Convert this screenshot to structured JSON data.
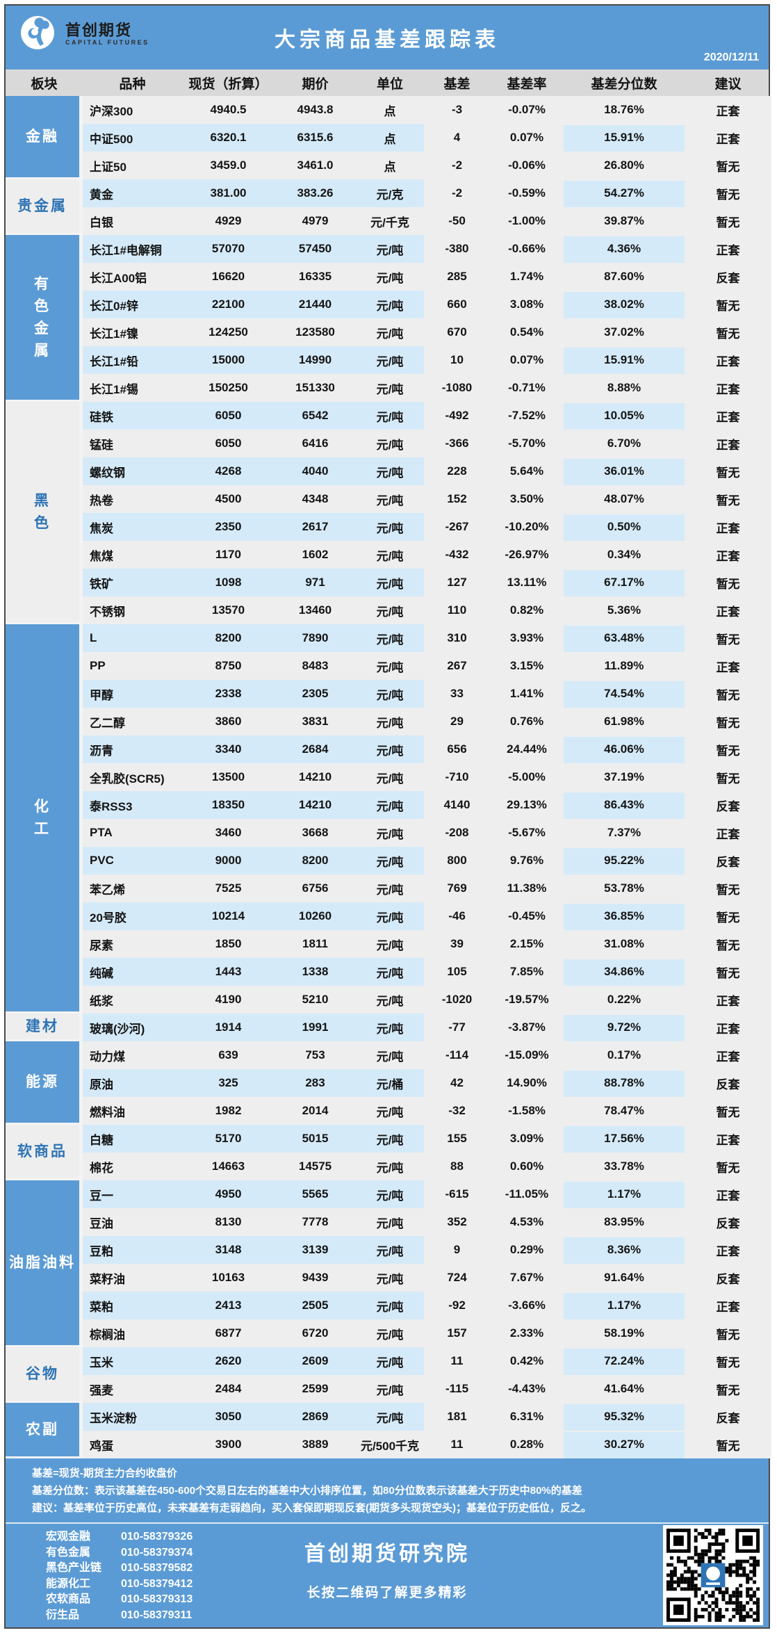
{
  "meta": {
    "logo_title": "首创期货",
    "logo_subtitle": "CAPITAL FUTURES",
    "title": "大宗商品基差跟踪表",
    "date": "2020/12/11"
  },
  "colors": {
    "primary_blue": "#5b9bd5",
    "stripe_blue": "#d5eaf8",
    "row_gray": "#eeeeee",
    "header_gray": "#d9d9d9",
    "sector_text_blue": "#2e74b5"
  },
  "columns": [
    "板块",
    "品种",
    "现货（折算）",
    "期价",
    "单位",
    "基差",
    "基差率",
    "基差分位数",
    "建议"
  ],
  "row_fields": [
    "variety",
    "spot",
    "futures",
    "unit",
    "basis",
    "basis_rate",
    "percentile",
    "advice",
    "striped",
    "percentile_highlight"
  ],
  "sectors": [
    {
      "name": "金融",
      "blue": true,
      "vertical": false,
      "rows": [
        [
          "沪深300",
          "4940.5",
          "4943.8",
          "点",
          "-3",
          "-0.07%",
          "18.76%",
          "正套",
          0,
          0
        ],
        [
          "中证500",
          "6320.1",
          "6315.6",
          "点",
          "4",
          "0.07%",
          "15.91%",
          "正套",
          1,
          1
        ],
        [
          "上证50",
          "3459.0",
          "3461.0",
          "点",
          "-2",
          "-0.06%",
          "26.80%",
          "暂无",
          0,
          0
        ]
      ]
    },
    {
      "name": "贵金属",
      "blue": false,
      "vertical": false,
      "rows": [
        [
          "黄金",
          "381.00",
          "383.26",
          "元/克",
          "-2",
          "-0.59%",
          "54.27%",
          "暂无",
          1,
          1
        ],
        [
          "白银",
          "4929",
          "4979",
          "元/千克",
          "-50",
          "-1.00%",
          "39.87%",
          "暂无",
          0,
          0
        ]
      ]
    },
    {
      "name": "有色金属",
      "blue": true,
      "vertical": true,
      "rows": [
        [
          "长江1#电解铜",
          "57070",
          "57450",
          "元/吨",
          "-380",
          "-0.66%",
          "4.36%",
          "正套",
          1,
          1
        ],
        [
          "长江A00铝",
          "16620",
          "16335",
          "元/吨",
          "285",
          "1.74%",
          "87.60%",
          "反套",
          0,
          0
        ],
        [
          "长江0#锌",
          "22100",
          "21440",
          "元/吨",
          "660",
          "3.08%",
          "38.02%",
          "暂无",
          1,
          1
        ],
        [
          "长江1#镍",
          "124250",
          "123580",
          "元/吨",
          "670",
          "0.54%",
          "37.02%",
          "暂无",
          0,
          0
        ],
        [
          "长江1#铅",
          "15000",
          "14990",
          "元/吨",
          "10",
          "0.07%",
          "15.91%",
          "正套",
          1,
          1
        ],
        [
          "长江1#锡",
          "150250",
          "151330",
          "元/吨",
          "-1080",
          "-0.71%",
          "8.88%",
          "正套",
          0,
          0
        ]
      ]
    },
    {
      "name": "黑色",
      "blue": false,
      "vertical": true,
      "rows": [
        [
          "硅铁",
          "6050",
          "6542",
          "元/吨",
          "-492",
          "-7.52%",
          "10.05%",
          "正套",
          1,
          1
        ],
        [
          "锰硅",
          "6050",
          "6416",
          "元/吨",
          "-366",
          "-5.70%",
          "6.70%",
          "正套",
          0,
          0
        ],
        [
          "螺纹钢",
          "4268",
          "4040",
          "元/吨",
          "228",
          "5.64%",
          "36.01%",
          "暂无",
          1,
          1
        ],
        [
          "热卷",
          "4500",
          "4348",
          "元/吨",
          "152",
          "3.50%",
          "48.07%",
          "暂无",
          0,
          0
        ],
        [
          "焦炭",
          "2350",
          "2617",
          "元/吨",
          "-267",
          "-10.20%",
          "0.50%",
          "正套",
          1,
          1
        ],
        [
          "焦煤",
          "1170",
          "1602",
          "元/吨",
          "-432",
          "-26.97%",
          "0.34%",
          "正套",
          0,
          0
        ],
        [
          "铁矿",
          "1098",
          "971",
          "元/吨",
          "127",
          "13.11%",
          "67.17%",
          "暂无",
          1,
          1
        ],
        [
          "不锈钢",
          "13570",
          "13460",
          "元/吨",
          "110",
          "0.82%",
          "5.36%",
          "正套",
          0,
          0
        ]
      ]
    },
    {
      "name": "化工",
      "blue": true,
      "vertical": true,
      "rows": [
        [
          "L",
          "8200",
          "7890",
          "元/吨",
          "310",
          "3.93%",
          "63.48%",
          "暂无",
          1,
          1
        ],
        [
          "PP",
          "8750",
          "8483",
          "元/吨",
          "267",
          "3.15%",
          "11.89%",
          "正套",
          0,
          0
        ],
        [
          "甲醇",
          "2338",
          "2305",
          "元/吨",
          "33",
          "1.41%",
          "74.54%",
          "暂无",
          1,
          1
        ],
        [
          "乙二醇",
          "3860",
          "3831",
          "元/吨",
          "29",
          "0.76%",
          "61.98%",
          "暂无",
          0,
          0
        ],
        [
          "沥青",
          "3340",
          "2684",
          "元/吨",
          "656",
          "24.44%",
          "46.06%",
          "暂无",
          1,
          1
        ],
        [
          "全乳胶(SCR5)",
          "13500",
          "14210",
          "元/吨",
          "-710",
          "-5.00%",
          "37.19%",
          "暂无",
          0,
          0
        ],
        [
          "泰RSS3",
          "18350",
          "14210",
          "元/吨",
          "4140",
          "29.13%",
          "86.43%",
          "反套",
          1,
          1
        ],
        [
          "PTA",
          "3460",
          "3668",
          "元/吨",
          "-208",
          "-5.67%",
          "7.37%",
          "正套",
          0,
          0
        ],
        [
          "PVC",
          "9000",
          "8200",
          "元/吨",
          "800",
          "9.76%",
          "95.22%",
          "反套",
          1,
          1
        ],
        [
          "苯乙烯",
          "7525",
          "6756",
          "元/吨",
          "769",
          "11.38%",
          "53.78%",
          "暂无",
          0,
          0
        ],
        [
          "20号胶",
          "10214",
          "10260",
          "元/吨",
          "-46",
          "-0.45%",
          "36.85%",
          "暂无",
          1,
          1
        ],
        [
          "尿素",
          "1850",
          "1811",
          "元/吨",
          "39",
          "2.15%",
          "31.08%",
          "暂无",
          0,
          0
        ],
        [
          "纯碱",
          "1443",
          "1338",
          "元/吨",
          "105",
          "7.85%",
          "34.86%",
          "暂无",
          1,
          1
        ],
        [
          "纸浆",
          "4190",
          "5210",
          "元/吨",
          "-1020",
          "-19.57%",
          "0.22%",
          "正套",
          0,
          0
        ]
      ]
    },
    {
      "name": "建材",
      "blue": false,
      "vertical": false,
      "rows": [
        [
          "玻璃(沙河)",
          "1914",
          "1991",
          "元/吨",
          "-77",
          "-3.87%",
          "9.72%",
          "正套",
          1,
          1
        ]
      ]
    },
    {
      "name": "能源",
      "blue": true,
      "vertical": false,
      "rows": [
        [
          "动力煤",
          "639",
          "753",
          "元/吨",
          "-114",
          "-15.09%",
          "0.17%",
          "正套",
          0,
          0
        ],
        [
          "原油",
          "325",
          "283",
          "元/桶",
          "42",
          "14.90%",
          "88.78%",
          "反套",
          1,
          1
        ],
        [
          "燃料油",
          "1982",
          "2014",
          "元/吨",
          "-32",
          "-1.58%",
          "78.47%",
          "暂无",
          0,
          0
        ]
      ]
    },
    {
      "name": "软商品",
      "blue": false,
      "vertical": false,
      "rows": [
        [
          "白糖",
          "5170",
          "5015",
          "元/吨",
          "155",
          "3.09%",
          "17.56%",
          "正套",
          1,
          1
        ],
        [
          "棉花",
          "14663",
          "14575",
          "元/吨",
          "88",
          "0.60%",
          "33.78%",
          "暂无",
          0,
          0
        ]
      ]
    },
    {
      "name": "油脂油料",
      "blue": true,
      "vertical": false,
      "rows": [
        [
          "豆一",
          "4950",
          "5565",
          "元/吨",
          "-615",
          "-11.05%",
          "1.17%",
          "正套",
          1,
          1
        ],
        [
          "豆油",
          "8130",
          "7778",
          "元/吨",
          "352",
          "4.53%",
          "83.95%",
          "反套",
          0,
          0
        ],
        [
          "豆粕",
          "3148",
          "3139",
          "元/吨",
          "9",
          "0.29%",
          "8.36%",
          "正套",
          1,
          1
        ],
        [
          "菜籽油",
          "10163",
          "9439",
          "元/吨",
          "724",
          "7.67%",
          "91.64%",
          "反套",
          0,
          0
        ],
        [
          "菜粕",
          "2413",
          "2505",
          "元/吨",
          "-92",
          "-3.66%",
          "1.17%",
          "正套",
          1,
          1
        ],
        [
          "棕榈油",
          "6877",
          "6720",
          "元/吨",
          "157",
          "2.33%",
          "58.19%",
          "暂无",
          0,
          0
        ]
      ]
    },
    {
      "name": "谷物",
      "blue": false,
      "vertical": false,
      "rows": [
        [
          "玉米",
          "2620",
          "2609",
          "元/吨",
          "11",
          "0.42%",
          "72.24%",
          "暂无",
          1,
          1
        ],
        [
          "强麦",
          "2484",
          "2599",
          "元/吨",
          "-115",
          "-4.43%",
          "41.64%",
          "暂无",
          0,
          0
        ]
      ]
    },
    {
      "name": "农副",
      "blue": true,
      "vertical": false,
      "rows": [
        [
          "玉米淀粉",
          "3050",
          "2869",
          "元/吨",
          "181",
          "6.31%",
          "95.32%",
          "反套",
          1,
          1
        ],
        [
          "鸡蛋",
          "3900",
          "3889",
          "元/500千克",
          "11",
          "0.28%",
          "30.27%",
          "暂无",
          0,
          1
        ]
      ]
    }
  ],
  "footnotes": [
    "基差=现货-期货主力合约收盘价",
    "基差分位数：表示该基差在450-600个交易日左右的基差中大小排序位置，如80分位数表示该基差大于历史中80%的基差",
    "建议：基差率位于历史高位，未来基差有走弱趋向，买入套保即期现反套(期货多头现货空头)；基差位于历史低位，反之。"
  ],
  "footer": {
    "contacts": [
      {
        "label": "宏观金融",
        "phone": "010-58379326"
      },
      {
        "label": "有色金属",
        "phone": "010-58379374"
      },
      {
        "label": "黑色产业链",
        "phone": "010-58379582"
      },
      {
        "label": "能源化工",
        "phone": "010-58379412"
      },
      {
        "label": "农软商品",
        "phone": "010-58379313"
      },
      {
        "label": "衍生品",
        "phone": "010-58379311"
      }
    ],
    "org": "首创期货研究院",
    "slogan": "长按二维码了解更多精彩",
    "qr_label": "qr-code"
  }
}
